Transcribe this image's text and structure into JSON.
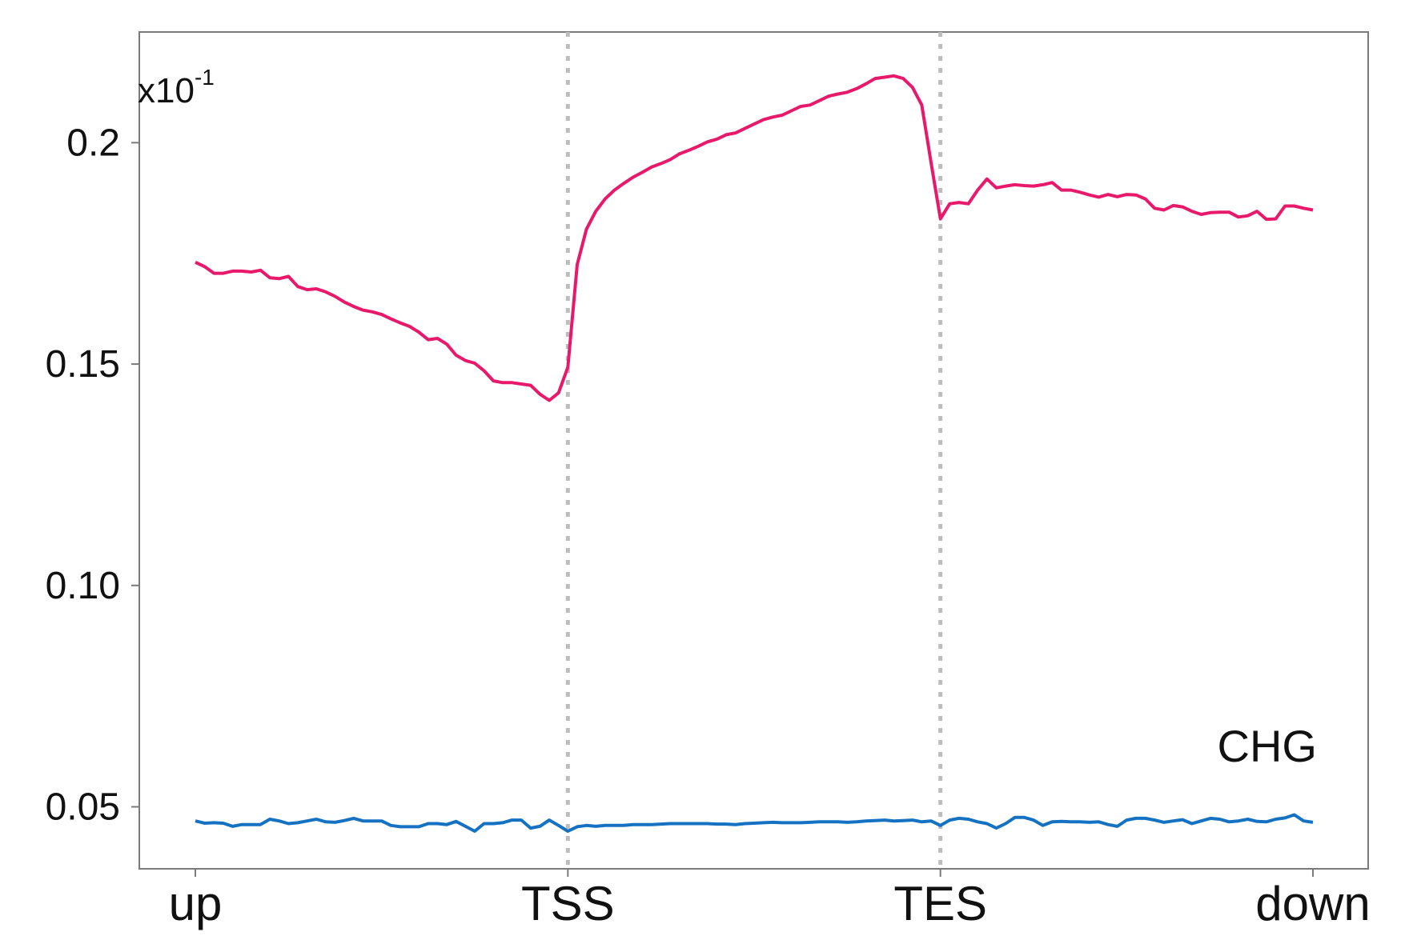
{
  "chart_data": {
    "type": "line",
    "title": "",
    "xlabel": "",
    "ylabel": "",
    "scale_label": "x10",
    "scale_exponent": "-1",
    "annotation": "CHG",
    "grid": false,
    "x_range": [
      0,
      120
    ],
    "ylim": [
      0.036,
      0.225
    ],
    "x_ticks": [
      {
        "label": "up",
        "value": 0
      },
      {
        "label": "TSS",
        "value": 40
      },
      {
        "label": "TES",
        "value": 80
      },
      {
        "label": "down",
        "value": 120
      }
    ],
    "y_ticks": [
      {
        "label": "0.05",
        "value": 0.05
      },
      {
        "label": "0.10",
        "value": 0.1
      },
      {
        "label": "0.15",
        "value": 0.15
      },
      {
        "label": "0.2",
        "value": 0.2
      }
    ],
    "vlines": [
      40,
      80
    ],
    "series": [
      {
        "color": "#e8196b",
        "x": [
          0,
          1,
          2,
          3,
          4,
          5,
          6,
          7,
          8,
          9,
          10,
          11,
          12,
          13,
          14,
          15,
          16,
          17,
          18,
          19,
          20,
          21,
          22,
          23,
          24,
          25,
          26,
          27,
          28,
          29,
          30,
          31,
          32,
          33,
          34,
          35,
          36,
          37,
          38,
          39,
          40,
          41,
          42,
          43,
          44,
          45,
          46,
          47,
          48,
          49,
          50,
          51,
          52,
          53,
          54,
          55,
          56,
          57,
          58,
          59,
          60,
          61,
          62,
          63,
          64,
          65,
          66,
          67,
          68,
          69,
          70,
          71,
          72,
          73,
          74,
          75,
          76,
          77,
          78,
          79,
          80,
          81,
          82,
          83,
          84,
          85,
          86,
          87,
          88,
          89,
          90,
          91,
          92,
          93,
          94,
          95,
          96,
          97,
          98,
          99,
          100,
          101,
          102,
          103,
          104,
          105,
          106,
          107,
          108,
          109,
          110,
          111,
          112,
          113,
          114,
          115,
          116,
          117,
          118,
          119,
          120
        ],
        "y": [
          0.173,
          0.172,
          0.1705,
          0.1705,
          0.171,
          0.171,
          0.1708,
          0.1712,
          0.1695,
          0.1693,
          0.1698,
          0.1675,
          0.1668,
          0.167,
          0.1663,
          0.1653,
          0.164,
          0.163,
          0.1622,
          0.1618,
          0.1612,
          0.1602,
          0.1593,
          0.1585,
          0.1572,
          0.1555,
          0.1558,
          0.1545,
          0.152,
          0.1508,
          0.1502,
          0.1485,
          0.1462,
          0.1458,
          0.1458,
          0.1455,
          0.1452,
          0.1432,
          0.1418,
          0.1435,
          0.1493,
          0.1725,
          0.1805,
          0.1845,
          0.1873,
          0.1893,
          0.1908,
          0.1922,
          0.1933,
          0.1945,
          0.1953,
          0.1962,
          0.1975,
          0.1983,
          0.1992,
          0.2002,
          0.2008,
          0.2018,
          0.2022,
          0.2032,
          0.2042,
          0.2052,
          0.2058,
          0.2062,
          0.2072,
          0.2082,
          0.2085,
          0.2095,
          0.2105,
          0.211,
          0.2114,
          0.2122,
          0.2133,
          0.2145,
          0.2148,
          0.2151,
          0.2145,
          0.2125,
          0.2085,
          0.1955,
          0.1828,
          0.1862,
          0.1865,
          0.1862,
          0.1893,
          0.1918,
          0.1898,
          0.1902,
          0.1905,
          0.1903,
          0.1902,
          0.1905,
          0.191,
          0.1893,
          0.1893,
          0.1888,
          0.1882,
          0.1877,
          0.1883,
          0.1878,
          0.1883,
          0.1882,
          0.1873,
          0.1852,
          0.1848,
          0.1858,
          0.1855,
          0.1845,
          0.1838,
          0.1842,
          0.1843,
          0.1843,
          0.1832,
          0.1835,
          0.1845,
          0.1827,
          0.1828,
          0.1857,
          0.1857,
          0.1852,
          0.1848
        ]
      },
      {
        "color": "#1572c2",
        "x": [
          0,
          1,
          2,
          3,
          4,
          5,
          6,
          7,
          8,
          9,
          10,
          11,
          12,
          13,
          14,
          15,
          16,
          17,
          18,
          19,
          20,
          21,
          22,
          23,
          24,
          25,
          26,
          27,
          28,
          29,
          30,
          31,
          32,
          33,
          34,
          35,
          36,
          37,
          38,
          39,
          40,
          41,
          42,
          43,
          44,
          45,
          46,
          47,
          48,
          49,
          50,
          51,
          52,
          53,
          54,
          55,
          56,
          57,
          58,
          59,
          60,
          61,
          62,
          63,
          64,
          65,
          66,
          67,
          68,
          69,
          70,
          71,
          72,
          73,
          74,
          75,
          76,
          77,
          78,
          79,
          80,
          81,
          82,
          83,
          84,
          85,
          86,
          87,
          88,
          89,
          90,
          91,
          92,
          93,
          94,
          95,
          96,
          97,
          98,
          99,
          100,
          101,
          102,
          103,
          104,
          105,
          106,
          107,
          108,
          109,
          110,
          111,
          112,
          113,
          114,
          115,
          116,
          117,
          118,
          119,
          120
        ],
        "y": [
          0.0468,
          0.0463,
          0.0464,
          0.0463,
          0.0456,
          0.046,
          0.046,
          0.046,
          0.0472,
          0.0468,
          0.0462,
          0.0464,
          0.0468,
          0.0472,
          0.0466,
          0.0465,
          0.0469,
          0.0474,
          0.0468,
          0.0468,
          0.0468,
          0.0458,
          0.0455,
          0.0455,
          0.0455,
          0.0462,
          0.0462,
          0.046,
          0.0467,
          0.0456,
          0.0445,
          0.0462,
          0.0462,
          0.0464,
          0.047,
          0.047,
          0.0452,
          0.0456,
          0.047,
          0.0458,
          0.0445,
          0.0455,
          0.0458,
          0.0456,
          0.0458,
          0.0458,
          0.0458,
          0.046,
          0.046,
          0.046,
          0.0461,
          0.0462,
          0.0462,
          0.0462,
          0.0462,
          0.0462,
          0.0461,
          0.0461,
          0.046,
          0.0462,
          0.0463,
          0.0464,
          0.0465,
          0.0464,
          0.0464,
          0.0464,
          0.0465,
          0.0466,
          0.0466,
          0.0466,
          0.0465,
          0.0466,
          0.0468,
          0.0469,
          0.047,
          0.0468,
          0.0469,
          0.047,
          0.0466,
          0.0468,
          0.0458,
          0.047,
          0.0474,
          0.0472,
          0.0466,
          0.0462,
          0.0452,
          0.0462,
          0.0476,
          0.0476,
          0.047,
          0.0458,
          0.0466,
          0.0467,
          0.0466,
          0.0466,
          0.0465,
          0.0466,
          0.046,
          0.0456,
          0.047,
          0.0474,
          0.0474,
          0.047,
          0.0465,
          0.0468,
          0.0471,
          0.0462,
          0.0468,
          0.0474,
          0.0472,
          0.0466,
          0.0468,
          0.0472,
          0.0467,
          0.0466,
          0.0472,
          0.0475,
          0.0482,
          0.0468,
          0.0465
        ]
      }
    ]
  }
}
